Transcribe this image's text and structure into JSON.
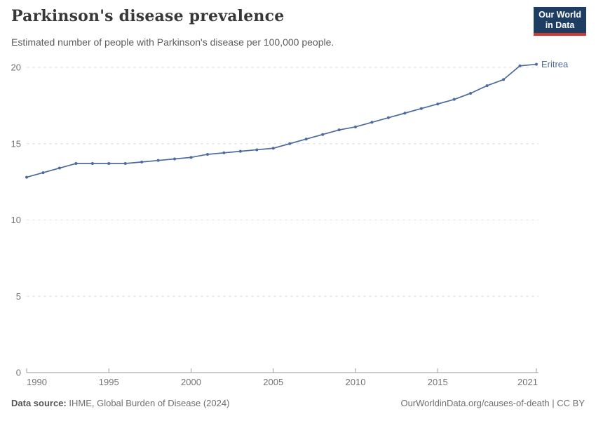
{
  "header": {
    "title": "Parkinson's disease prevalence",
    "subtitle": "Estimated number of people with Parkinson's disease per 100,000 people.",
    "logo": {
      "line1": "Our World",
      "line2": "in Data"
    }
  },
  "chart_data": {
    "type": "line",
    "title": "Parkinson's disease prevalence",
    "xlabel": "",
    "ylabel": "",
    "x": [
      1990,
      1991,
      1992,
      1993,
      1994,
      1995,
      1996,
      1997,
      1998,
      1999,
      2000,
      2001,
      2002,
      2003,
      2004,
      2005,
      2006,
      2007,
      2008,
      2009,
      2010,
      2011,
      2012,
      2013,
      2014,
      2015,
      2016,
      2017,
      2018,
      2019,
      2020,
      2021
    ],
    "series": [
      {
        "name": "Eritrea",
        "values": [
          12.8,
          13.1,
          13.4,
          13.7,
          13.7,
          13.7,
          13.7,
          13.8,
          13.9,
          14.0,
          14.1,
          14.3,
          14.4,
          14.5,
          14.6,
          14.7,
          15.0,
          15.3,
          15.6,
          15.9,
          16.1,
          16.4,
          16.7,
          17.0,
          17.3,
          17.6,
          17.9,
          18.3,
          18.8,
          19.2,
          20.1,
          20.2
        ]
      }
    ],
    "ylim": [
      0,
      20
    ],
    "yticks": [
      0,
      5,
      10,
      15,
      20
    ],
    "xticks": [
      1990,
      1995,
      2000,
      2005,
      2010,
      2015,
      2021
    ],
    "grid": "horizontal-dashed",
    "legend_position": "end-of-line-label",
    "end_label": "Eritrea"
  },
  "footer": {
    "source_label": "Data source:",
    "source_value": "IHME, Global Burden of Disease (2024)",
    "credit": "OurWorldinData.org/causes-of-death | CC BY"
  },
  "colors": {
    "line": "#4c6a9c",
    "entity_label": "#4c6a9c",
    "grid": "#e0e0e0",
    "axis": "#9a9a9a",
    "tick_label": "#737373",
    "title": "#383838",
    "subtitle": "#5b5b5b",
    "footer_label": "#555555",
    "footer_text": "#6e6e6e",
    "logo_bg": "#1d3d63",
    "logo_accent": "#cc3b31"
  }
}
